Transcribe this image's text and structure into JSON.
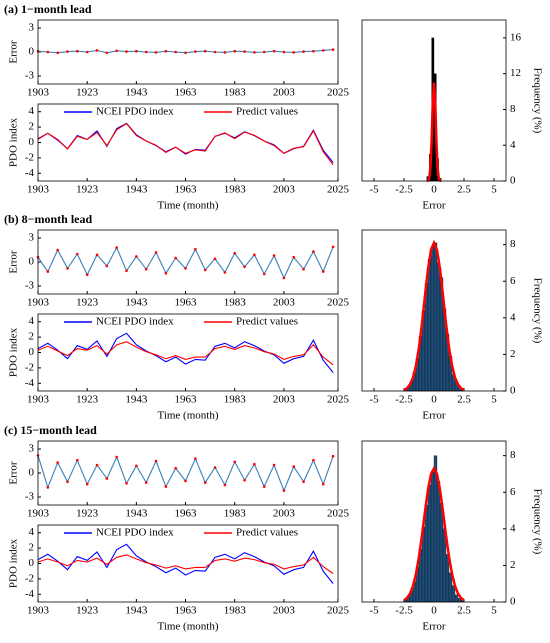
{
  "chart_data": [
    {
      "type": "line",
      "title": "(a) 1−month lead",
      "ylabel": "Error",
      "x": [
        1903,
        1907,
        1911,
        1915,
        1919,
        1923,
        1927,
        1931,
        1935,
        1939,
        1943,
        1947,
        1951,
        1955,
        1959,
        1963,
        1967,
        1971,
        1975,
        1979,
        1983,
        1987,
        1991,
        1995,
        1999,
        2003,
        2007,
        2011,
        2015,
        2019,
        2023
      ],
      "xlim": [
        1903,
        2025
      ],
      "xticks": [
        1903,
        1923,
        1943,
        1963,
        1983,
        2003,
        2025
      ],
      "ylim": [
        -4,
        4
      ],
      "yticks": [
        -3,
        0,
        3
      ],
      "series": [
        {
          "color": "#3a7fb8",
          "marker_color": "#ff0000",
          "values": [
            0.1,
            0.0,
            -0.1,
            0.05,
            0.1,
            0.0,
            0.2,
            -0.1,
            0.15,
            0.05,
            0.1,
            0.0,
            -0.05,
            0.1,
            0.0,
            -0.1,
            0.05,
            0.1,
            0.0,
            -0.05,
            0.1,
            0.05,
            -0.05,
            0.0,
            0.1,
            0.0,
            -0.05,
            0.05,
            0.1,
            0.2,
            0.3
          ]
        }
      ]
    },
    {
      "type": "line",
      "ylabel": "PDO index",
      "xlabel": "Time (month)",
      "legend": "north",
      "x": [
        1903,
        1907,
        1911,
        1915,
        1919,
        1923,
        1927,
        1931,
        1935,
        1939,
        1943,
        1947,
        1951,
        1955,
        1959,
        1963,
        1967,
        1971,
        1975,
        1979,
        1983,
        1987,
        1991,
        1995,
        1999,
        2003,
        2007,
        2011,
        2015,
        2019,
        2023
      ],
      "xlim": [
        1903,
        2025
      ],
      "xticks": [
        1903,
        1923,
        1943,
        1963,
        1983,
        2003,
        2025
      ],
      "ylim": [
        -5,
        5
      ],
      "yticks": [
        -4,
        -2,
        0,
        2,
        4
      ],
      "series": [
        {
          "name": "NCEI PDO index",
          "color": "#0000ff",
          "values": [
            0.5,
            1.2,
            0.3,
            -0.8,
            0.9,
            0.4,
            1.5,
            -0.5,
            1.8,
            2.5,
            1.0,
            0.2,
            -0.4,
            -1.2,
            -0.6,
            -1.5,
            -0.9,
            -1.0,
            0.8,
            1.2,
            0.6,
            1.4,
            0.9,
            0.2,
            -0.3,
            -1.4,
            -0.8,
            -0.5,
            1.6,
            -1.0,
            -2.6
          ]
        },
        {
          "name": "Predict values",
          "color": "#ff0000",
          "values": [
            0.4,
            1.2,
            0.4,
            -0.85,
            0.8,
            0.4,
            1.3,
            -0.4,
            1.65,
            2.45,
            0.9,
            0.2,
            -0.35,
            -1.3,
            -0.6,
            -1.4,
            -0.95,
            -1.1,
            0.8,
            1.25,
            0.5,
            1.35,
            0.95,
            0.2,
            -0.4,
            -1.4,
            -0.75,
            -0.55,
            1.5,
            -1.2,
            -2.9
          ]
        }
      ]
    },
    {
      "type": "histogram",
      "xlabel": "Error",
      "ylabel": "Frequency (%)",
      "xlim": [
        -6,
        6
      ],
      "xticks": [
        -5,
        -2.5,
        0,
        2.5,
        5
      ],
      "ylim": [
        0,
        18
      ],
      "yticks": [
        0,
        4,
        8,
        12,
        16
      ],
      "color": "#000000",
      "bins": [
        -0.6,
        -0.4,
        -0.2,
        0,
        0.2,
        0.4,
        0.6
      ],
      "values": [
        0.5,
        3,
        16,
        12,
        2.5,
        0.3
      ],
      "fit": {
        "color": "#ff0000",
        "x": [
          -0.6,
          -0.5,
          -0.4,
          -0.3,
          -0.2,
          -0.1,
          0,
          0.1,
          0.2,
          0.3,
          0.4,
          0.5,
          0.6
        ],
        "values": [
          0,
          0.04,
          0.3,
          1.5,
          4.5,
          8.8,
          11,
          8.8,
          4.5,
          1.5,
          0.3,
          0.04,
          0
        ]
      }
    },
    {
      "type": "line",
      "title": "(b) 8−month lead",
      "ylabel": "Error",
      "x": [
        1903,
        1907,
        1911,
        1915,
        1919,
        1923,
        1927,
        1931,
        1935,
        1939,
        1943,
        1947,
        1951,
        1955,
        1959,
        1963,
        1967,
        1971,
        1975,
        1979,
        1983,
        1987,
        1991,
        1995,
        1999,
        2003,
        2007,
        2011,
        2015,
        2019,
        2023
      ],
      "xlim": [
        1903,
        2025
      ],
      "xticks": [
        1903,
        1923,
        1943,
        1963,
        1983,
        2003,
        2025
      ],
      "ylim": [
        -4,
        4
      ],
      "yticks": [
        -3,
        0,
        3
      ],
      "series": [
        {
          "color": "#3a7fb8",
          "marker_color": "#ff0000",
          "values": [
            0.6,
            -1.2,
            1.5,
            -0.8,
            1.0,
            -1.6,
            0.9,
            -0.5,
            1.8,
            -1.1,
            0.7,
            -0.9,
            1.2,
            -1.4,
            0.5,
            -0.8,
            1.6,
            -1.0,
            0.4,
            -1.3,
            1.1,
            -0.6,
            0.9,
            -1.5,
            0.8,
            -2.0,
            0.6,
            -0.9,
            1.3,
            -1.2,
            1.9
          ]
        }
      ]
    },
    {
      "type": "line",
      "ylabel": "PDO index",
      "xlabel": "Time (month)",
      "legend": "north",
      "x": [
        1903,
        1907,
        1911,
        1915,
        1919,
        1923,
        1927,
        1931,
        1935,
        1939,
        1943,
        1947,
        1951,
        1955,
        1959,
        1963,
        1967,
        1971,
        1975,
        1979,
        1983,
        1987,
        1991,
        1995,
        1999,
        2003,
        2007,
        2011,
        2015,
        2019,
        2023
      ],
      "xlim": [
        1903,
        2025
      ],
      "xticks": [
        1903,
        1923,
        1943,
        1963,
        1983,
        2003,
        2025
      ],
      "ylim": [
        -5,
        5
      ],
      "yticks": [
        -4,
        -2,
        0,
        2,
        4
      ],
      "series": [
        {
          "name": "NCEI PDO index",
          "color": "#0000ff",
          "values": [
            0.5,
            1.2,
            0.3,
            -0.8,
            0.9,
            0.4,
            1.5,
            -0.5,
            1.8,
            2.5,
            1.0,
            0.2,
            -0.4,
            -1.2,
            -0.6,
            -1.5,
            -0.9,
            -1.0,
            0.8,
            1.2,
            0.6,
            1.4,
            0.9,
            0.2,
            -0.3,
            -1.4,
            -0.8,
            -0.5,
            1.6,
            -1.0,
            -2.6
          ]
        },
        {
          "name": "Predict values",
          "color": "#ff0000",
          "values": [
            0.3,
            0.8,
            0.2,
            -0.4,
            0.5,
            0.3,
            0.9,
            -0.2,
            1.0,
            1.4,
            0.7,
            0.1,
            -0.3,
            -0.8,
            -0.4,
            -0.9,
            -0.6,
            -0.6,
            0.5,
            0.8,
            0.4,
            0.9,
            0.6,
            0.1,
            -0.2,
            -0.9,
            -0.5,
            -0.3,
            1.0,
            -0.6,
            -1.6
          ]
        }
      ]
    },
    {
      "type": "histogram",
      "xlabel": "Error",
      "ylabel": "Frequency (%)",
      "xlim": [
        -6,
        6
      ],
      "xticks": [
        -5,
        -2.5,
        0,
        2.5,
        5
      ],
      "ylim": [
        0,
        8.8
      ],
      "yticks": [
        0,
        2,
        4,
        6,
        8
      ],
      "color": "#1f4e79",
      "bins": [
        -2.5,
        -2.25,
        -2,
        -1.75,
        -1.5,
        -1.25,
        -1,
        -0.75,
        -0.5,
        -0.25,
        0,
        0.25,
        0.5,
        0.75,
        1,
        1.25,
        1.5,
        1.75,
        2,
        2.25,
        2.5
      ],
      "values": [
        0.1,
        0.2,
        0.5,
        1.0,
        1.8,
        3.0,
        4.4,
        5.9,
        7.2,
        7.9,
        8.1,
        7.0,
        6.2,
        4.5,
        3.1,
        1.9,
        0.9,
        0.5,
        0.2,
        0.1
      ],
      "fit": {
        "color": "#ff0000",
        "x": [
          -2.5,
          -2.25,
          -2,
          -1.75,
          -1.5,
          -1.25,
          -1,
          -0.75,
          -0.5,
          -0.25,
          0,
          0.25,
          0.5,
          0.75,
          1,
          1.25,
          1.5,
          1.75,
          2,
          2.25,
          2.5
        ],
        "values": [
          0.06,
          0.15,
          0.36,
          0.74,
          1.4,
          2.39,
          3.7,
          5.22,
          6.67,
          7.71,
          8.1,
          7.71,
          6.67,
          5.22,
          3.7,
          2.39,
          1.4,
          0.74,
          0.36,
          0.15,
          0.06
        ]
      }
    },
    {
      "type": "line",
      "title": "(c) 15−month lead",
      "ylabel": "Error",
      "x": [
        1903,
        1907,
        1911,
        1915,
        1919,
        1923,
        1927,
        1931,
        1935,
        1939,
        1943,
        1947,
        1951,
        1955,
        1959,
        1963,
        1967,
        1971,
        1975,
        1979,
        1983,
        1987,
        1991,
        1995,
        1999,
        2003,
        2007,
        2011,
        2015,
        2019,
        2023
      ],
      "xlim": [
        1903,
        2025
      ],
      "xticks": [
        1903,
        1923,
        1943,
        1963,
        1983,
        2003,
        2025
      ],
      "ylim": [
        -4,
        4
      ],
      "yticks": [
        -3,
        0,
        3
      ],
      "series": [
        {
          "color": "#3a7fb8",
          "marker_color": "#ff0000",
          "values": [
            2.2,
            -1.8,
            1.3,
            -1.1,
            1.6,
            -1.4,
            1.0,
            -0.7,
            2.0,
            -1.3,
            0.9,
            -1.2,
            1.5,
            -1.7,
            0.6,
            -1.0,
            1.8,
            -1.2,
            0.7,
            -1.5,
            1.4,
            -0.9,
            1.1,
            -1.7,
            1.0,
            -2.2,
            0.8,
            -1.1,
            1.6,
            -1.4,
            2.1
          ]
        }
      ]
    },
    {
      "type": "line",
      "ylabel": "PDO index",
      "xlabel": "Time (month)",
      "legend": "north",
      "x": [
        1903,
        1907,
        1911,
        1915,
        1919,
        1923,
        1927,
        1931,
        1935,
        1939,
        1943,
        1947,
        1951,
        1955,
        1959,
        1963,
        1967,
        1971,
        1975,
        1979,
        1983,
        1987,
        1991,
        1995,
        1999,
        2003,
        2007,
        2011,
        2015,
        2019,
        2023
      ],
      "xlim": [
        1903,
        2025
      ],
      "xticks": [
        1903,
        1923,
        1943,
        1963,
        1983,
        2003,
        2025
      ],
      "ylim": [
        -5,
        5
      ],
      "yticks": [
        -4,
        -2,
        0,
        2,
        4
      ],
      "series": [
        {
          "name": "NCEI PDO index",
          "color": "#0000ff",
          "values": [
            0.5,
            1.2,
            0.3,
            -0.8,
            0.9,
            0.4,
            1.5,
            -0.5,
            1.8,
            2.5,
            1.0,
            0.2,
            -0.4,
            -1.2,
            -0.6,
            -1.5,
            -0.9,
            -1.0,
            0.8,
            1.2,
            0.6,
            1.4,
            0.9,
            0.2,
            -0.3,
            -1.4,
            -0.8,
            -0.5,
            1.6,
            -1.0,
            -2.6
          ]
        },
        {
          "name": "Predict values",
          "color": "#ff0000",
          "values": [
            0.2,
            0.6,
            0.2,
            -0.3,
            0.4,
            0.2,
            0.7,
            -0.1,
            0.8,
            1.1,
            0.6,
            0.1,
            -0.2,
            -0.6,
            -0.3,
            -0.7,
            -0.5,
            -0.5,
            0.4,
            0.6,
            0.3,
            0.7,
            0.5,
            0.1,
            -0.1,
            -0.7,
            -0.4,
            -0.2,
            0.8,
            -0.4,
            -1.3
          ]
        }
      ]
    },
    {
      "type": "histogram",
      "xlabel": "Error",
      "ylabel": "Frequency (%)",
      "xlim": [
        -6,
        6
      ],
      "xticks": [
        -5,
        -2.5,
        0,
        2.5,
        5
      ],
      "ylim": [
        0,
        8.8
      ],
      "yticks": [
        0,
        2,
        4,
        6,
        8
      ],
      "color": "#1f4e79",
      "bins": [
        -2.5,
        -2.25,
        -2,
        -1.75,
        -1.5,
        -1.25,
        -1,
        -0.75,
        -0.5,
        -0.25,
        0,
        0.25,
        0.5,
        0.75,
        1,
        1.25,
        1.5,
        1.75,
        2,
        2.25,
        2.5
      ],
      "values": [
        0.1,
        0.3,
        0.6,
        1.1,
        1.9,
        2.9,
        4.1,
        5.3,
        6.4,
        7.1,
        8.0,
        6.6,
        5.4,
        4.0,
        2.6,
        1.6,
        0.9,
        0.4,
        0.2,
        0.1
      ],
      "fit": {
        "color": "#ff0000",
        "x": [
          -2.5,
          -2.25,
          -2,
          -1.75,
          -1.5,
          -1.25,
          -1,
          -0.75,
          -0.5,
          -0.25,
          0,
          0.25,
          0.5,
          0.75,
          1,
          1.25,
          1.5,
          1.75,
          2,
          2.25,
          2.5
        ],
        "values": [
          0.1,
          0.22,
          0.46,
          0.88,
          1.54,
          2.48,
          3.65,
          4.95,
          6.14,
          6.99,
          7.3,
          6.99,
          6.14,
          4.95,
          3.65,
          2.48,
          1.54,
          0.88,
          0.46,
          0.22,
          0.1
        ]
      }
    }
  ]
}
